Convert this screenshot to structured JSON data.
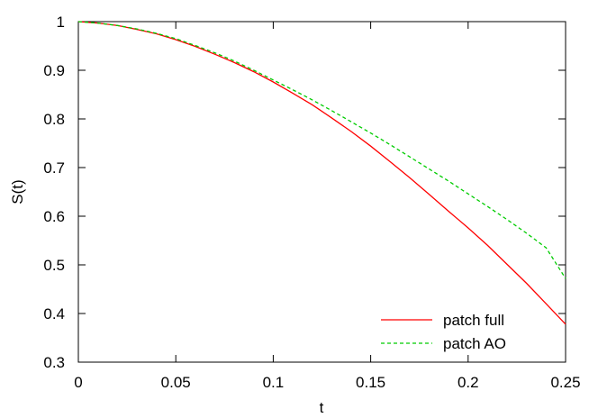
{
  "chart_data": {
    "type": "line",
    "title": "",
    "xlabel": "t",
    "ylabel": "S(t)",
    "xlim": [
      0,
      0.25
    ],
    "ylim": [
      0.3,
      1.0
    ],
    "xticks": [
      0,
      0.05,
      0.1,
      0.15,
      0.2,
      0.25
    ],
    "xtick_labels": [
      "0",
      "0.05",
      "0.1",
      "0.15",
      "0.2",
      "0.25"
    ],
    "yticks": [
      0.3,
      0.4,
      0.5,
      0.6,
      0.7,
      0.8,
      0.9,
      1.0
    ],
    "ytick_labels": [
      "0.3",
      "0.4",
      "0.5",
      "0.6",
      "0.7",
      "0.8",
      "0.9",
      "1"
    ],
    "grid": false,
    "legend_position": "bottom-right",
    "series": [
      {
        "name": "patch full",
        "color": "#ff0000",
        "dash": "solid",
        "x": [
          0,
          0.01,
          0.02,
          0.03,
          0.04,
          0.05,
          0.06,
          0.07,
          0.08,
          0.09,
          0.1,
          0.11,
          0.12,
          0.13,
          0.14,
          0.15,
          0.16,
          0.17,
          0.18,
          0.19,
          0.2,
          0.21,
          0.22,
          0.23,
          0.24,
          0.25
        ],
        "y": [
          1.0,
          0.997,
          0.992,
          0.984,
          0.975,
          0.963,
          0.949,
          0.933,
          0.916,
          0.897,
          0.876,
          0.853,
          0.829,
          0.802,
          0.774,
          0.744,
          0.712,
          0.679,
          0.645,
          0.61,
          0.576,
          0.54,
          0.501,
          0.462,
          0.42,
          0.378
        ]
      },
      {
        "name": "patch AO",
        "color": "#00cc00",
        "dash": "dashed",
        "x": [
          0,
          0.01,
          0.02,
          0.03,
          0.04,
          0.05,
          0.06,
          0.07,
          0.08,
          0.09,
          0.1,
          0.11,
          0.12,
          0.13,
          0.14,
          0.15,
          0.16,
          0.17,
          0.18,
          0.19,
          0.2,
          0.21,
          0.22,
          0.23,
          0.24,
          0.25
        ],
        "y": [
          1.0,
          0.997,
          0.992,
          0.985,
          0.976,
          0.965,
          0.951,
          0.936,
          0.919,
          0.9,
          0.88,
          0.86,
          0.839,
          0.817,
          0.794,
          0.771,
          0.747,
          0.722,
          0.697,
          0.672,
          0.646,
          0.62,
          0.593,
          0.565,
          0.535,
          0.472
        ]
      }
    ]
  }
}
